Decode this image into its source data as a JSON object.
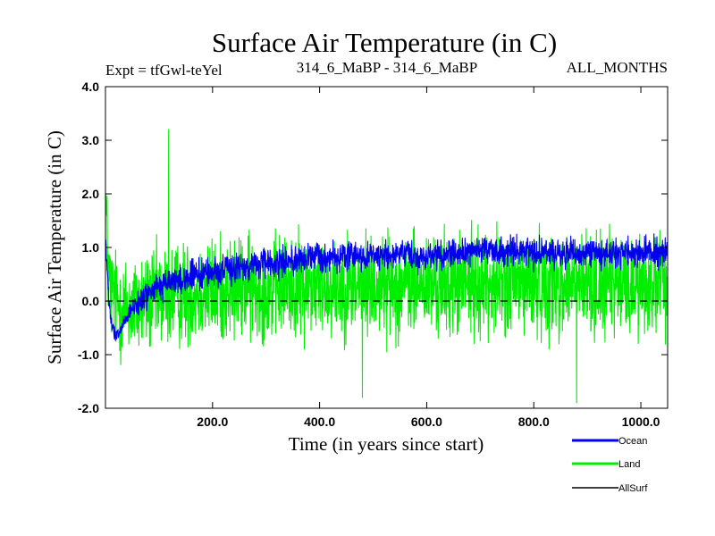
{
  "chart_data": {
    "type": "line",
    "title": "Surface Air Temperature (in C)",
    "subtitle_left": "Expt = tfGwl-teYel",
    "subtitle_center": "314_6_MaBP - 314_6_MaBP",
    "subtitle_right": "ALL_MONTHS",
    "xlabel": "Time (in years since start)",
    "ylabel": "Surface Air Temperature (in C)",
    "xlim": [
      0,
      1050
    ],
    "ylim": [
      -2.0,
      4.0
    ],
    "x_ticks": [
      200,
      400,
      600,
      800,
      1000
    ],
    "x_tick_labels": [
      "200.0",
      "400.0",
      "600.0",
      "800.0",
      "1000.0"
    ],
    "y_ticks": [
      -2,
      -1,
      0,
      1,
      2,
      3,
      4
    ],
    "y_tick_labels": [
      "-2.0",
      "-1.0",
      "0.0",
      "1.0",
      "2.0",
      "3.0",
      "4.0"
    ],
    "reference_line": 0.0,
    "legend": [
      {
        "name": "Ocean",
        "color": "#0000ee"
      },
      {
        "name": "Land",
        "color": "#00ee00"
      },
      {
        "name": "AllSurf",
        "color": "#000000"
      }
    ],
    "series": [
      {
        "name": "Land",
        "color": "#00ee00",
        "trend_x": [
          0,
          5,
          10,
          20,
          30,
          50,
          80,
          120,
          200,
          300,
          400,
          500,
          600,
          700,
          800,
          900,
          1000,
          1050
        ],
        "trend_y": [
          2.0,
          0.6,
          0.2,
          0.0,
          -0.15,
          -0.1,
          0.0,
          0.1,
          0.2,
          0.25,
          0.3,
          0.3,
          0.3,
          0.32,
          0.3,
          0.3,
          0.3,
          0.3
        ],
        "noise_amplitude": 1.4,
        "notable_points": [
          {
            "x": 118,
            "y": 3.2
          },
          {
            "x": 880,
            "y": -1.9
          },
          {
            "x": 480,
            "y": -1.8
          }
        ]
      },
      {
        "name": "Ocean",
        "color": "#0000ee",
        "trend_x": [
          0,
          5,
          10,
          20,
          30,
          50,
          80,
          120,
          200,
          300,
          400,
          500,
          600,
          700,
          800,
          900,
          1000,
          1050
        ],
        "trend_y": [
          1.2,
          0.2,
          -0.4,
          -0.7,
          -0.5,
          -0.15,
          0.15,
          0.35,
          0.55,
          0.7,
          0.82,
          0.85,
          0.85,
          0.95,
          0.9,
          0.9,
          0.9,
          0.92
        ],
        "noise_amplitude": 0.4
      },
      {
        "name": "AllSurf",
        "color": "#000000",
        "trend_x": [],
        "trend_y": []
      }
    ]
  }
}
